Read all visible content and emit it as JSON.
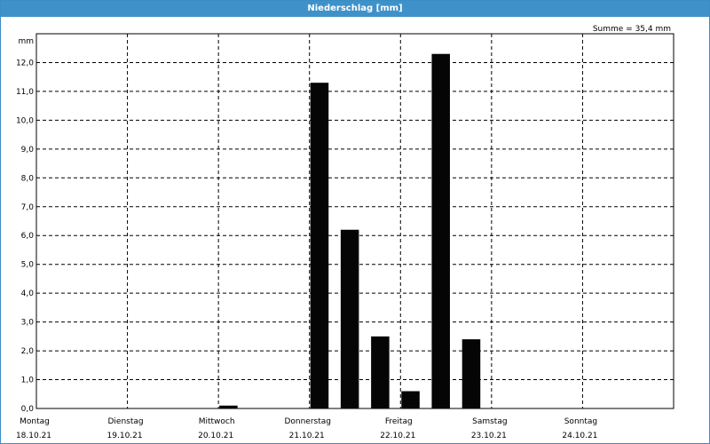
{
  "window": {
    "title": "Niederschlag [mm]"
  },
  "chart_data": {
    "type": "bar",
    "title": "Niederschlag [mm]",
    "ylabel": "mm",
    "annotation": "Summe = 35,4 mm",
    "ylim": [
      0,
      13
    ],
    "y_ticks": [
      "0,0",
      "1,0",
      "2,0",
      "3,0",
      "4,0",
      "5,0",
      "6,0",
      "7,0",
      "8,0",
      "9,0",
      "10,0",
      "11,0",
      "12,0"
    ],
    "x_labels": [
      {
        "day": "Montag",
        "date": "18.10.21"
      },
      {
        "day": "Dienstag",
        "date": "19.10.21"
      },
      {
        "day": "Mittwoch",
        "date": "20.10.21"
      },
      {
        "day": "Donnerstag",
        "date": "21.10.21"
      },
      {
        "day": "Freitag",
        "date": "22.10.21"
      },
      {
        "day": "Samstag",
        "date": "23.10.21"
      },
      {
        "day": "Sonntag",
        "date": "24.10.21"
      }
    ],
    "bar_width_days": 0.2,
    "bar_color": "#050505",
    "series": [
      {
        "values": [
          {
            "day_offset": 2.0,
            "value": 0.1
          },
          {
            "day_offset": 3.0,
            "value": 11.3
          },
          {
            "day_offset": 3.333,
            "value": 6.2
          },
          {
            "day_offset": 3.667,
            "value": 2.5
          },
          {
            "day_offset": 4.0,
            "value": 0.6
          },
          {
            "day_offset": 4.333,
            "value": 12.3
          },
          {
            "day_offset": 4.667,
            "value": 2.4
          }
        ]
      }
    ],
    "grid": true
  }
}
